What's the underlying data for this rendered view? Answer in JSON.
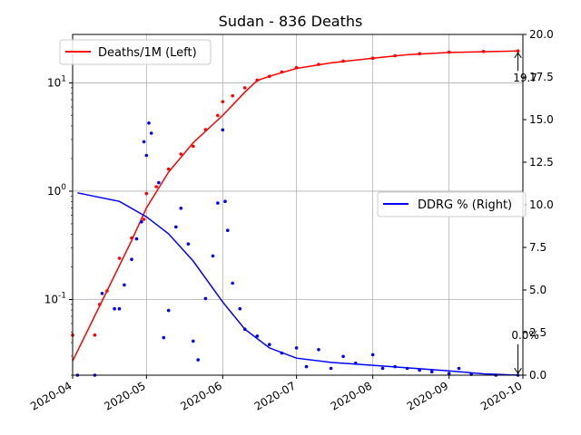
{
  "chart_data": {
    "type": "line",
    "title": "Sudan - 836 Deaths",
    "x_start": "2020-04-01",
    "x_end": "2020-10-01",
    "x_tick_labels": [
      "2020-04",
      "2020-05",
      "2020-06",
      "2020-07",
      "2020-08",
      "2020-09",
      "2020-10"
    ],
    "y_left": {
      "scale": "log",
      "lim": [
        0.02,
        28
      ],
      "tick_labels": [
        "10^-1",
        "10^0",
        "10^1"
      ]
    },
    "y_right": {
      "scale": "linear",
      "lim": [
        0,
        20
      ],
      "tick_labels": [
        "0.0",
        "2.5",
        "5.0",
        "7.5",
        "10.0",
        "12.5",
        "15.0",
        "17.5",
        "20.0"
      ]
    },
    "grid": true,
    "legends": [
      {
        "label": "Deaths/1M (Left)",
        "color": "#ff0000",
        "placement": "top-left"
      },
      {
        "label": "DDRG % (Right)",
        "color": "#0000ff",
        "placement": "center-right"
      }
    ],
    "annotations": [
      {
        "text": "19.7",
        "series": "Deaths/1M (Left)",
        "x": "2020-09-29",
        "y": 19.7
      },
      {
        "text": "0.0%",
        "series": "DDRG % (Right)",
        "x": "2020-09-29",
        "y": 0.0
      }
    ],
    "series": [
      {
        "name": "Deaths/1M (Left)",
        "axis": "left",
        "color": "#ff0000",
        "line": [
          [
            "2020-04-01",
            0.027
          ],
          [
            "2020-04-15",
            0.12
          ],
          [
            "2020-04-25",
            0.35
          ],
          [
            "2020-05-01",
            0.7
          ],
          [
            "2020-05-10",
            1.5
          ],
          [
            "2020-05-20",
            2.8
          ],
          [
            "2020-06-01",
            5.0
          ],
          [
            "2020-06-10",
            8.2
          ],
          [
            "2020-06-15",
            10.5
          ],
          [
            "2020-06-20",
            11.5
          ],
          [
            "2020-07-01",
            13.6
          ],
          [
            "2020-07-15",
            15.3
          ],
          [
            "2020-08-01",
            16.9
          ],
          [
            "2020-08-15",
            18.2
          ],
          [
            "2020-09-01",
            19.1
          ],
          [
            "2020-09-29",
            19.7
          ]
        ],
        "points": [
          [
            "2020-04-01",
            0.047
          ],
          [
            "2020-04-10",
            0.047
          ],
          [
            "2020-04-12",
            0.09
          ],
          [
            "2020-04-15",
            0.12
          ],
          [
            "2020-04-20",
            0.24
          ],
          [
            "2020-04-25",
            0.37
          ],
          [
            "2020-04-30",
            0.55
          ],
          [
            "2020-05-01",
            0.95
          ],
          [
            "2020-05-05",
            1.1
          ],
          [
            "2020-05-10",
            1.6
          ],
          [
            "2020-05-15",
            2.2
          ],
          [
            "2020-05-20",
            2.6
          ],
          [
            "2020-05-25",
            3.7
          ],
          [
            "2020-05-30",
            5.0
          ],
          [
            "2020-06-01",
            6.7
          ],
          [
            "2020-06-05",
            7.6
          ],
          [
            "2020-06-10",
            9.0
          ],
          [
            "2020-06-15",
            10.6
          ],
          [
            "2020-06-20",
            11.5
          ],
          [
            "2020-06-25",
            12.6
          ],
          [
            "2020-07-01",
            13.8
          ],
          [
            "2020-07-10",
            14.8
          ],
          [
            "2020-07-20",
            15.9
          ],
          [
            "2020-08-01",
            16.9
          ],
          [
            "2020-08-10",
            17.8
          ],
          [
            "2020-08-20",
            18.6
          ],
          [
            "2020-09-01",
            19.2
          ],
          [
            "2020-09-15",
            19.5
          ],
          [
            "2020-09-29",
            19.7
          ]
        ]
      },
      {
        "name": "DDRG % (Right)",
        "axis": "right",
        "color": "#0000ff",
        "line": [
          [
            "2020-04-03",
            10.7
          ],
          [
            "2020-04-20",
            10.2
          ],
          [
            "2020-05-01",
            9.3
          ],
          [
            "2020-05-10",
            8.3
          ],
          [
            "2020-05-20",
            6.7
          ],
          [
            "2020-06-01",
            4.3
          ],
          [
            "2020-06-10",
            2.7
          ],
          [
            "2020-06-20",
            1.6
          ],
          [
            "2020-07-01",
            1.0
          ],
          [
            "2020-07-15",
            0.75
          ],
          [
            "2020-08-01",
            0.58
          ],
          [
            "2020-08-15",
            0.43
          ],
          [
            "2020-09-01",
            0.25
          ],
          [
            "2020-09-15",
            0.08
          ],
          [
            "2020-09-29",
            0.0
          ]
        ],
        "points": [
          [
            "2020-04-03",
            0.0
          ],
          [
            "2020-04-10",
            0.0
          ],
          [
            "2020-04-13",
            4.8
          ],
          [
            "2020-04-18",
            3.9
          ],
          [
            "2020-04-20",
            3.9
          ],
          [
            "2020-04-22",
            5.3
          ],
          [
            "2020-04-25",
            6.8
          ],
          [
            "2020-04-27",
            8.0
          ],
          [
            "2020-04-29",
            9.0
          ],
          [
            "2020-04-30",
            13.7
          ],
          [
            "2020-05-01",
            12.9
          ],
          [
            "2020-05-02",
            14.8
          ],
          [
            "2020-05-03",
            14.2
          ],
          [
            "2020-05-06",
            11.3
          ],
          [
            "2020-05-08",
            2.2
          ],
          [
            "2020-05-10",
            3.8
          ],
          [
            "2020-05-13",
            8.7
          ],
          [
            "2020-05-15",
            9.8
          ],
          [
            "2020-05-18",
            7.7
          ],
          [
            "2020-05-20",
            2.0
          ],
          [
            "2020-05-22",
            0.9
          ],
          [
            "2020-05-25",
            4.5
          ],
          [
            "2020-05-28",
            7.0
          ],
          [
            "2020-05-30",
            10.1
          ],
          [
            "2020-06-01",
            14.4
          ],
          [
            "2020-06-02",
            10.2
          ],
          [
            "2020-06-03",
            8.5
          ],
          [
            "2020-06-05",
            5.4
          ],
          [
            "2020-06-08",
            3.9
          ],
          [
            "2020-06-10",
            2.7
          ],
          [
            "2020-06-15",
            2.3
          ],
          [
            "2020-06-20",
            1.8
          ],
          [
            "2020-06-25",
            1.3
          ],
          [
            "2020-07-01",
            1.6
          ],
          [
            "2020-07-05",
            0.5
          ],
          [
            "2020-07-10",
            1.5
          ],
          [
            "2020-07-15",
            0.4
          ],
          [
            "2020-07-20",
            1.1
          ],
          [
            "2020-07-25",
            0.7
          ],
          [
            "2020-08-01",
            1.2
          ],
          [
            "2020-08-05",
            0.4
          ],
          [
            "2020-08-10",
            0.5
          ],
          [
            "2020-08-15",
            0.4
          ],
          [
            "2020-08-20",
            0.3
          ],
          [
            "2020-08-25",
            0.2
          ],
          [
            "2020-09-01",
            0.1
          ],
          [
            "2020-09-05",
            0.4
          ],
          [
            "2020-09-10",
            0.05
          ],
          [
            "2020-09-20",
            0.0
          ],
          [
            "2020-09-29",
            0.0
          ]
        ]
      }
    ]
  }
}
